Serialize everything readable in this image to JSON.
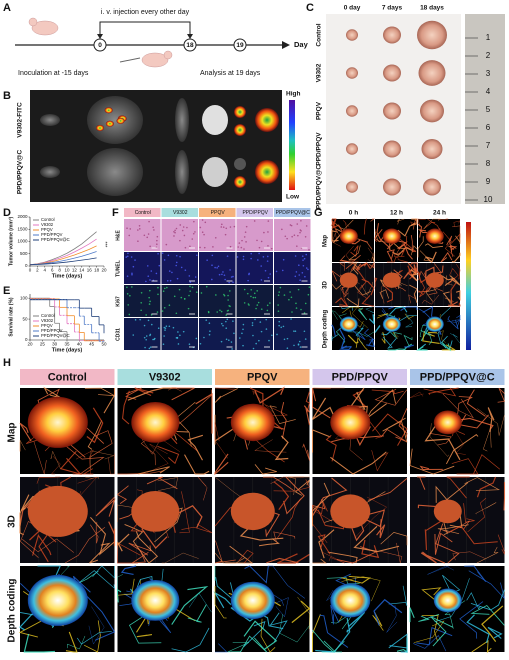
{
  "panel_labels": [
    "A",
    "B",
    "C",
    "D",
    "E",
    "F",
    "G",
    "H"
  ],
  "timeline": {
    "injection": "i. v. injection every other day",
    "days": [
      "0",
      "18",
      "19"
    ],
    "axis_label": "Day",
    "inoculation": "Inoculation at -15 days",
    "analysis": "Analysis at 19 days"
  },
  "imaging": {
    "rows": [
      "V9302-FITC",
      "PPD/PPQV@C"
    ],
    "scale_high": "High",
    "scale_low": "Low"
  },
  "tumor_photos": {
    "columns": [
      "0 day",
      "7 days",
      "18 days"
    ],
    "rows": [
      "Control",
      "V9302",
      "PPQV",
      "PPD/PPQV",
      "PPD/PPQV@C"
    ],
    "ruler_marks": [
      "1",
      "2",
      "3",
      "4",
      "5",
      "6",
      "7",
      "8",
      "9",
      "10"
    ]
  },
  "chart_data": [
    {
      "type": "line",
      "y_label": "Tumor volume (mm³)",
      "x_label": "Time (days)",
      "x": [
        0,
        2,
        4,
        6,
        8,
        10,
        12,
        14,
        16,
        18
      ],
      "series": [
        {
          "name": "Control",
          "color": "#7f7f7f",
          "values": [
            50,
            90,
            160,
            260,
            380,
            520,
            700,
            900,
            1150,
            1400
          ]
        },
        {
          "name": "V9302",
          "color": "#e377c2",
          "values": [
            50,
            80,
            140,
            220,
            320,
            430,
            570,
            730,
            900,
            1100
          ]
        },
        {
          "name": "PPQV",
          "color": "#f28e2b",
          "values": [
            50,
            75,
            120,
            180,
            260,
            350,
            450,
            560,
            680,
            820
          ]
        },
        {
          "name": "PPD/PPQV",
          "color": "#4e79c7",
          "values": [
            50,
            70,
            100,
            140,
            190,
            250,
            320,
            400,
            490,
            590
          ]
        },
        {
          "name": "PPD/PPQV@C",
          "color": "#1f3f7a",
          "values": [
            50,
            60,
            80,
            100,
            130,
            160,
            200,
            240,
            280,
            330
          ]
        }
      ],
      "xlim": [
        0,
        20
      ],
      "xticks": [
        0,
        2,
        4,
        6,
        8,
        10,
        12,
        14,
        16,
        18,
        20
      ],
      "ylim": [
        0,
        2000
      ],
      "yticks": [
        0,
        500,
        1000,
        1500,
        2000
      ],
      "annotation": "***"
    },
    {
      "type": "step",
      "y_label": "Survival rate (%)",
      "x_label": "Time (days)",
      "x": [
        20,
        25,
        28,
        30,
        32,
        35,
        38,
        40,
        42,
        45,
        48,
        50
      ],
      "series": [
        {
          "name": "Control",
          "color": "#7f7f7f",
          "values": [
            100,
            100,
            80,
            40,
            20,
            0,
            0,
            0,
            0,
            0,
            0,
            0
          ]
        },
        {
          "name": "V9302",
          "color": "#e377c2",
          "values": [
            100,
            100,
            100,
            80,
            60,
            40,
            20,
            0,
            0,
            0,
            0,
            0
          ]
        },
        {
          "name": "PPQV",
          "color": "#f28e2b",
          "values": [
            100,
            100,
            100,
            100,
            80,
            60,
            40,
            20,
            0,
            0,
            0,
            0
          ]
        },
        {
          "name": "PPD/PPQV",
          "color": "#4e79c7",
          "values": [
            100,
            100,
            100,
            100,
            100,
            80,
            80,
            60,
            40,
            20,
            0,
            0
          ]
        },
        {
          "name": "PPD/PPQV@C",
          "color": "#1f3f7a",
          "values": [
            100,
            100,
            100,
            100,
            100,
            100,
            100,
            80,
            80,
            60,
            40,
            20
          ]
        }
      ],
      "xlim": [
        20,
        50
      ],
      "xticks": [
        20,
        25,
        30,
        35,
        40,
        45,
        50
      ],
      "ylim": [
        0,
        110
      ],
      "yticks": [
        0,
        50,
        100
      ]
    }
  ],
  "histology": {
    "columns": [
      "Control",
      "V9302",
      "PPQV",
      "PPD/PPQV",
      "PPD/PPQV@C"
    ],
    "header_colors": [
      "#f2b8c6",
      "#a8dede",
      "#f6b27e",
      "#d4c6ec",
      "#a9c4e8"
    ],
    "rows": [
      "H&E",
      "TUNEL",
      "Ki67",
      "CD31"
    ]
  },
  "photoacoustic": {
    "columns": [
      "0 h",
      "12 h",
      "24 h"
    ],
    "rows": [
      "Map",
      "3D",
      "Depth coding"
    ]
  },
  "groups": {
    "names": [
      "Control",
      "V9302",
      "PPQV",
      "PPD/PPQV",
      "PPD/PPQV@C"
    ],
    "colors": [
      "#f2b8c6",
      "#a8dede",
      "#f6b27e",
      "#d4c6ec",
      "#a9c4e8"
    ],
    "rows": [
      "Map",
      "3D",
      "Depth coding"
    ]
  }
}
